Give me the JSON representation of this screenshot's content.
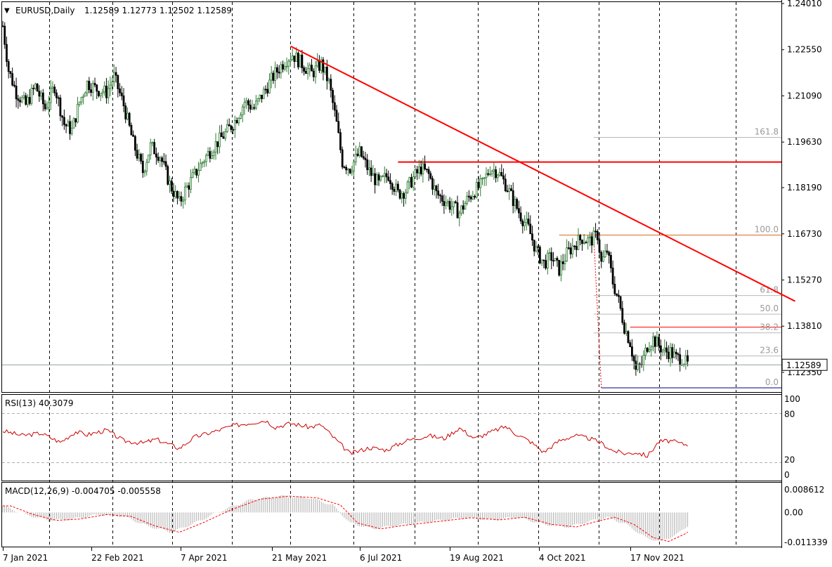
{
  "header": {
    "symbol_label": "EURUSD,Daily",
    "ohlc": "1.12589 1.12773 1.12502 1.12589"
  },
  "price_panel": {
    "ticks": [
      "1.24010",
      "1.22550",
      "1.21090",
      "1.19630",
      "1.18190",
      "1.16730",
      "1.15270",
      "1.13810",
      "1.12350"
    ],
    "current_price": "1.12589"
  },
  "fibonacci": {
    "levels": [
      "161.8",
      "100.0",
      "61.8",
      "50.0",
      "38.2",
      "23.6",
      "0.0"
    ]
  },
  "rsi": {
    "label": "RSI(13) 40.3079",
    "ticks": [
      "100",
      "80",
      "20",
      "0"
    ]
  },
  "macd": {
    "label": "MACD(12,26,9) -0.004705 -0.005558",
    "ticks": [
      "0.008612",
      "0.00",
      "-0.011339"
    ]
  },
  "time_axis": {
    "labels": [
      "7 Jan 2021",
      "22 Feb 2021",
      "7 Apr 2021",
      "21 May 2021",
      "6 Jul 2021",
      "19 Aug 2021",
      "4 Oct 2021",
      "17 Nov 2021"
    ]
  },
  "colors": {
    "bull_candle": "#2e7d32",
    "bear_candle": "#000000",
    "trendline": "#ff0000",
    "rsi_line": "#cc0000",
    "macd_signal": "#ff0000",
    "macd_hist": "#b0b0b0",
    "low_line": "#00008b"
  },
  "chart_data": {
    "type": "candlestick",
    "symbol": "EURUSD",
    "timeframe": "Daily",
    "ylim": [
      1.1175,
      1.2401
    ],
    "close_path": [
      [
        0,
        1.233
      ],
      [
        3,
        1.219
      ],
      [
        7,
        1.212
      ],
      [
        12,
        1.208
      ],
      [
        17,
        1.214
      ],
      [
        22,
        1.207
      ],
      [
        27,
        1.214
      ],
      [
        32,
        1.202
      ],
      [
        36,
        1.2
      ],
      [
        40,
        1.209
      ],
      [
        44,
        1.215
      ],
      [
        49,
        1.213
      ],
      [
        54,
        1.212
      ],
      [
        58,
        1.217
      ],
      [
        63,
        1.208
      ],
      [
        68,
        1.196
      ],
      [
        73,
        1.187
      ],
      [
        77,
        1.195
      ],
      [
        82,
        1.192
      ],
      [
        87,
        1.183
      ],
      [
        92,
        1.177
      ],
      [
        95,
        1.181
      ],
      [
        100,
        1.186
      ],
      [
        105,
        1.191
      ],
      [
        110,
        1.195
      ],
      [
        116,
        1.199
      ],
      [
        121,
        1.203
      ],
      [
        126,
        1.209
      ],
      [
        131,
        1.207
      ],
      [
        137,
        1.213
      ],
      [
        142,
        1.218
      ],
      [
        147,
        1.222
      ],
      [
        151,
        1.224
      ],
      [
        156,
        1.221
      ],
      [
        161,
        1.218
      ],
      [
        166,
        1.221
      ],
      [
        170,
        1.215
      ],
      [
        174,
        1.202
      ],
      [
        177,
        1.19
      ],
      [
        181,
        1.188
      ],
      [
        186,
        1.193
      ],
      [
        191,
        1.187
      ],
      [
        196,
        1.183
      ],
      [
        201,
        1.186
      ],
      [
        206,
        1.18
      ],
      [
        210,
        1.181
      ],
      [
        214,
        1.185
      ],
      [
        218,
        1.188
      ],
      [
        222,
        1.186
      ],
      [
        226,
        1.18
      ],
      [
        230,
        1.178
      ],
      [
        234,
        1.176
      ],
      [
        238,
        1.174
      ],
      [
        242,
        1.178
      ],
      [
        246,
        1.181
      ],
      [
        250,
        1.183
      ],
      [
        254,
        1.188
      ],
      [
        258,
        1.187
      ],
      [
        262,
        1.183
      ],
      [
        266,
        1.178
      ],
      [
        270,
        1.173
      ],
      [
        274,
        1.169
      ],
      [
        278,
        1.162
      ],
      [
        282,
        1.158
      ],
      [
        286,
        1.16
      ],
      [
        290,
        1.156
      ],
      [
        294,
        1.161
      ],
      [
        298,
        1.164
      ],
      [
        302,
        1.166
      ],
      [
        306,
        1.165
      ],
      [
        310,
        1.167
      ],
      [
        312,
        1.158
      ],
      [
        315,
        1.162
      ],
      [
        318,
        1.152
      ],
      [
        321,
        1.146
      ],
      [
        324,
        1.138
      ],
      [
        327,
        1.133
      ],
      [
        330,
        1.124
      ],
      [
        333,
        1.126
      ],
      [
        336,
        1.132
      ],
      [
        339,
        1.134
      ],
      [
        342,
        1.132
      ],
      [
        345,
        1.13
      ],
      [
        348,
        1.13
      ],
      [
        351,
        1.128
      ],
      [
        354,
        1.128
      ],
      [
        357,
        1.1259
      ]
    ],
    "horizontal_levels": [
      1.19,
      1.1669,
      1.1378
    ],
    "trendline": [
      [
        150,
        1.2266
      ],
      [
        413,
        1.146
      ]
    ],
    "fib_levels": {
      "161.8": 1.1978,
      "100.0": 1.1669,
      "61.8": 1.1478,
      "50.0": 1.1419,
      "38.2": 1.136,
      "23.6": 1.1287,
      "0.0": 1.1186
    },
    "rsi_path": [
      [
        0,
        58
      ],
      [
        10,
        52
      ],
      [
        20,
        55
      ],
      [
        30,
        43
      ],
      [
        38,
        57
      ],
      [
        44,
        53
      ],
      [
        54,
        59
      ],
      [
        63,
        45
      ],
      [
        73,
        42
      ],
      [
        80,
        47
      ],
      [
        92,
        35
      ],
      [
        100,
        50
      ],
      [
        110,
        57
      ],
      [
        120,
        65
      ],
      [
        130,
        69
      ],
      [
        137,
        72
      ],
      [
        142,
        63
      ],
      [
        150,
        68
      ],
      [
        160,
        63
      ],
      [
        166,
        66
      ],
      [
        173,
        48
      ],
      [
        181,
        28
      ],
      [
        191,
        36
      ],
      [
        200,
        33
      ],
      [
        210,
        45
      ],
      [
        222,
        52
      ],
      [
        230,
        48
      ],
      [
        238,
        62
      ],
      [
        246,
        48
      ],
      [
        255,
        57
      ],
      [
        262,
        64
      ],
      [
        267,
        55
      ],
      [
        275,
        44
      ],
      [
        282,
        30
      ],
      [
        290,
        45
      ],
      [
        298,
        52
      ],
      [
        306,
        48
      ],
      [
        312,
        42
      ],
      [
        318,
        32
      ],
      [
        325,
        28
      ],
      [
        330,
        30
      ],
      [
        336,
        25
      ],
      [
        342,
        44
      ],
      [
        348,
        45
      ],
      [
        354,
        41
      ],
      [
        357,
        40
      ]
    ],
    "macd_path": [
      [
        0,
        0.0025
      ],
      [
        12,
        -0.0008
      ],
      [
        24,
        -0.003
      ],
      [
        36,
        -0.0025
      ],
      [
        50,
        -0.0008
      ],
      [
        63,
        -0.0015
      ],
      [
        75,
        -0.005
      ],
      [
        88,
        -0.0075
      ],
      [
        100,
        -0.004
      ],
      [
        115,
        0.001
      ],
      [
        130,
        0.005
      ],
      [
        145,
        0.0062
      ],
      [
        160,
        0.0055
      ],
      [
        172,
        0.0028
      ],
      [
        181,
        -0.004
      ],
      [
        193,
        -0.0062
      ],
      [
        206,
        -0.0048
      ],
      [
        222,
        -0.0035
      ],
      [
        240,
        -0.002
      ],
      [
        255,
        -0.0028
      ],
      [
        268,
        -0.0018
      ],
      [
        282,
        -0.0045
      ],
      [
        295,
        -0.0055
      ],
      [
        305,
        -0.0035
      ],
      [
        315,
        -0.0018
      ],
      [
        325,
        -0.0045
      ],
      [
        335,
        -0.0095
      ],
      [
        343,
        -0.011
      ],
      [
        352,
        -0.008
      ],
      [
        357,
        -0.005
      ]
    ]
  }
}
